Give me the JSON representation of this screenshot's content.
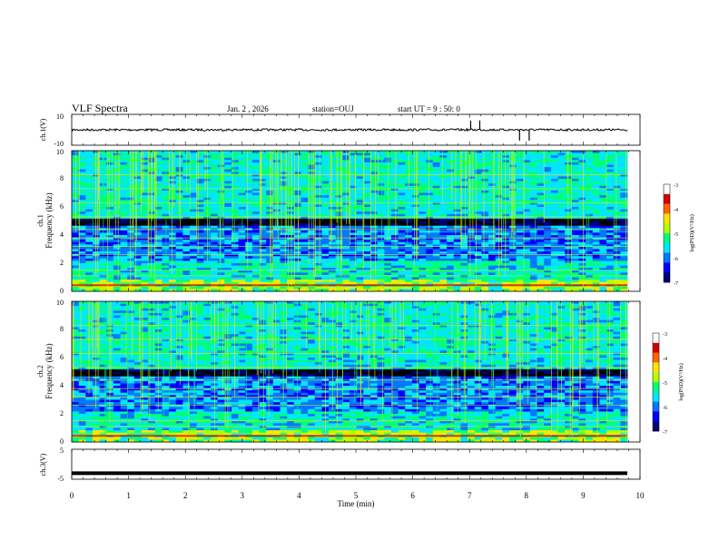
{
  "header": {
    "title": "VLF Spectra",
    "date": "Jan. 2 , 2026",
    "station": "station=OUJ",
    "start_ut": "start UT =  9 : 50: 0"
  },
  "chart_data": [
    {
      "type": "line",
      "id": "ch1-waveform",
      "ylabel": "ch.1(V)",
      "ylim": [
        -10,
        10
      ],
      "y_ticks": [
        "10",
        "-10"
      ],
      "xlim": [
        0,
        10
      ],
      "baseline": 0,
      "spikes_min": [
        7.02,
        7.18,
        7.88,
        8.05
      ]
    },
    {
      "type": "heatmap",
      "id": "ch1-spectrogram",
      "channel_label": "ch.1",
      "ylabel": "Frequency (kHz)",
      "ylim": [
        0,
        10
      ],
      "y_ticks": [
        "0",
        "2",
        "4",
        "6",
        "8",
        "10"
      ],
      "xlim": [
        0,
        10
      ],
      "colorbar": {
        "label": "log(PSD)(V²/Hz)",
        "range": [
          -7,
          -3
        ],
        "ticks": [
          "-3",
          "-4",
          "-5",
          "-6",
          "-7"
        ]
      }
    },
    {
      "type": "heatmap",
      "id": "ch2-spectrogram",
      "channel_label": "ch.2",
      "ylabel": "Frequency (kHz)",
      "ylim": [
        0,
        10
      ],
      "y_ticks": [
        "0",
        "2",
        "4",
        "6",
        "8",
        "10"
      ],
      "xlim": [
        0,
        10
      ],
      "colorbar": {
        "label": "log(PSD)(V²/Hz)",
        "range": [
          -7,
          -3
        ],
        "ticks": [
          "-3",
          "-4",
          "-5",
          "-6",
          "-7"
        ]
      }
    },
    {
      "type": "line",
      "id": "ch3-waveform",
      "ylabel": "ch.3(V)",
      "ylim": [
        -5,
        5
      ],
      "y_ticks": [
        "5",
        "-5"
      ],
      "xlim": [
        0,
        10
      ],
      "level": -3
    }
  ],
  "x_axis": {
    "label": "Time (min)",
    "ticks": [
      "0",
      "1",
      "2",
      "3",
      "4",
      "5",
      "6",
      "7",
      "8",
      "9",
      "10"
    ]
  },
  "colors": {
    "colormap": [
      "#000000",
      "#00007a",
      "#0000ff",
      "#0078ff",
      "#00e6ff",
      "#00ff78",
      "#b4ff00",
      "#ffe600",
      "#ff6400",
      "#d20000",
      "#ffffff"
    ]
  }
}
